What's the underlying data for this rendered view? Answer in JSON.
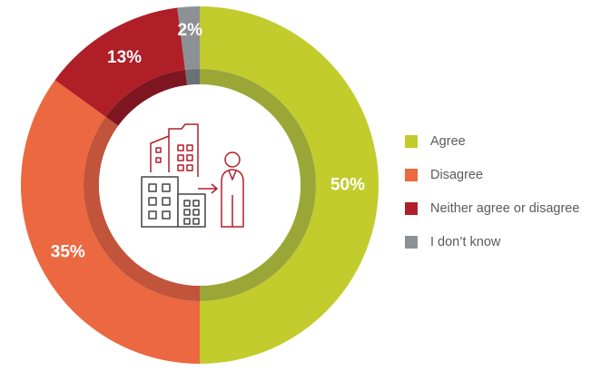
{
  "chart_data": {
    "type": "pie",
    "style": "donut",
    "categories": [
      "Agree",
      "Disagree",
      "Neither agree or disagree",
      "I don’t know"
    ],
    "values": [
      50,
      35,
      13,
      2
    ],
    "value_labels": [
      "50%",
      "35%",
      "13%",
      "2%"
    ],
    "colors": [
      "#c2cc2c",
      "#eb6840",
      "#b01e28",
      "#8c9196"
    ],
    "inner_ring_colors": [
      "#9aa737",
      "#c2543b",
      "#7d1620",
      "#6b7075"
    ],
    "legend_position": "right",
    "center_icon": "office-buildings-person-icon"
  }
}
